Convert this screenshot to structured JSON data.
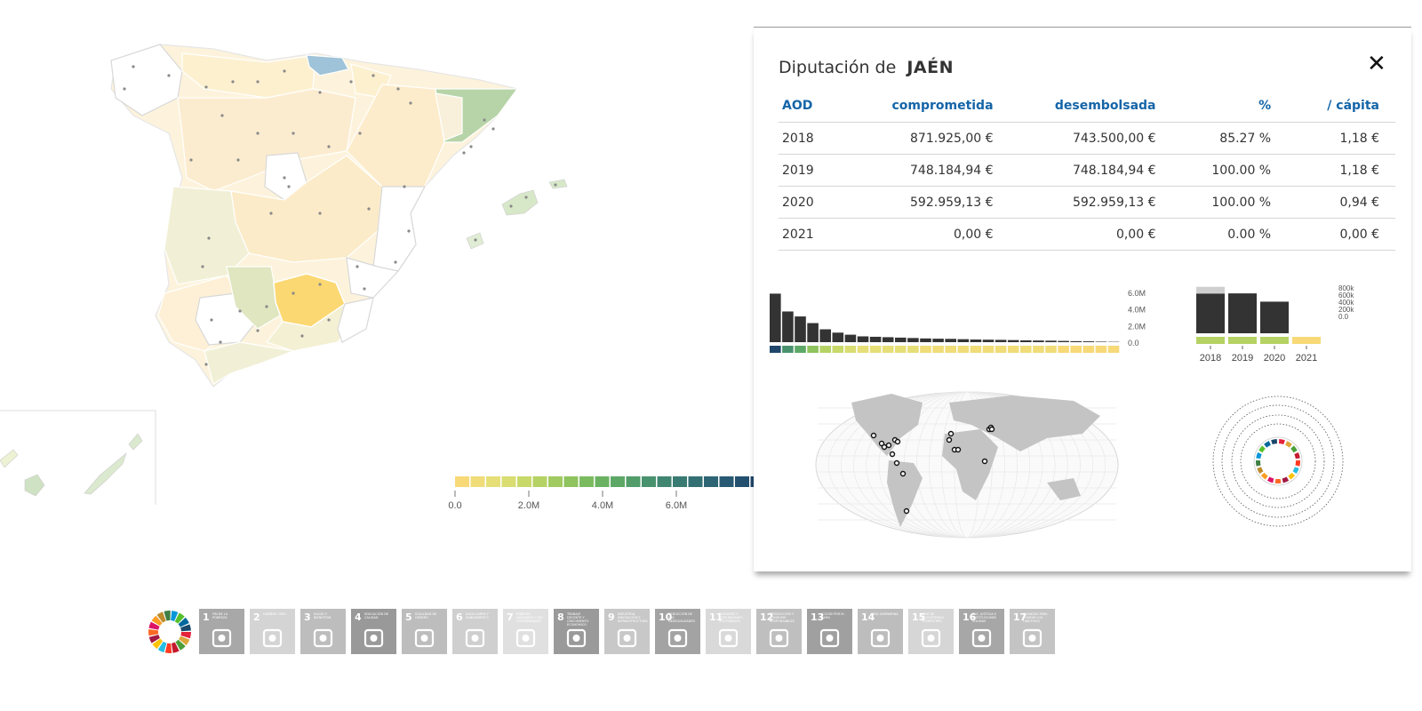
{
  "panel": {
    "title_prefix": "Diputación de",
    "title_name": "JAÉN",
    "close_label": "✕",
    "table": {
      "headers": [
        "AOD",
        "comprometida",
        "desembolsada",
        "%",
        "/ cápita"
      ],
      "rows": [
        [
          "2018",
          "871.925,00 €",
          "743.500,00 €",
          "85.27 %",
          "1,18 €"
        ],
        [
          "2019",
          "748.184,94 €",
          "748.184,94 €",
          "100.00 %",
          "1,18 €"
        ],
        [
          "2020",
          "592.959,13 €",
          "592.959,13 €",
          "100.00 %",
          "0,94 €"
        ],
        [
          "2021",
          "0,00 €",
          "0,00 €",
          "0.00 %",
          "0,00 €"
        ]
      ]
    },
    "ranking_chart": {
      "type": "bar",
      "ticks": [
        "6.0M",
        "4.0M",
        "2.0M",
        "0.0"
      ],
      "values": [
        5.85,
        3.7,
        3.1,
        2.3,
        1.55,
        1.15,
        0.9,
        0.7,
        0.65,
        0.6,
        0.55,
        0.5,
        0.45,
        0.42,
        0.4,
        0.36,
        0.32,
        0.3,
        0.28,
        0.25,
        0.22,
        0.2,
        0.18,
        0.15,
        0.12,
        0.1,
        0.06,
        0.04
      ],
      "value_unit": "M"
    },
    "year_chart": {
      "type": "bar",
      "ticks": [
        "800k",
        "600k",
        "400k",
        "200k",
        "0.0"
      ],
      "categories": [
        "2018",
        "2019",
        "2020",
        "2021"
      ],
      "committed": [
        871925.0,
        748184.94,
        592959.13,
        0
      ],
      "disbursed": [
        743500.0,
        748184.94,
        592959.13,
        0
      ]
    }
  },
  "legend": {
    "ticks": [
      "0.0",
      "2.0M",
      "4.0M",
      "6.0M"
    ],
    "colors": [
      "#f7d978",
      "#f0dc78",
      "#e6df78",
      "#d9dd72",
      "#c8d96a",
      "#b5d264",
      "#a1ca60",
      "#8ec35e",
      "#7bbb60",
      "#6ab262",
      "#5da866",
      "#529d6a",
      "#49926e",
      "#408670",
      "#397b72",
      "#337073",
      "#2d6574",
      "#285a74",
      "#23506f",
      "#1f466a"
    ]
  },
  "sdg": {
    "wheel_colors": [
      "#e5243b",
      "#dda63a",
      "#4c9f38",
      "#c5192d",
      "#ff3a21",
      "#26bde2",
      "#fcc30b",
      "#a21942",
      "#fd6925",
      "#dd1367",
      "#fd9d24",
      "#bf8b2e",
      "#3f7e44",
      "#0a97d9",
      "#56c02b",
      "#00689d",
      "#19486a"
    ],
    "goals": [
      {
        "num": "1",
        "text": "Fin de la pobreza",
        "icon": "family-icon",
        "shade": "#a8a8a8"
      },
      {
        "num": "2",
        "text": "Hambre cero",
        "icon": "bowl-icon",
        "shade": "#d4d4d4"
      },
      {
        "num": "3",
        "text": "Salud y bienestar",
        "icon": "heartbeat-icon",
        "shade": "#bdbdbd"
      },
      {
        "num": "4",
        "text": "Educación de calidad",
        "icon": "book-icon",
        "shade": "#999999"
      },
      {
        "num": "5",
        "text": "Igualdad de género",
        "icon": "gender-icon",
        "shade": "#bdbdbd"
      },
      {
        "num": "6",
        "text": "Agua limpia y saneamiento",
        "icon": "water-icon",
        "shade": "#cfcfcf"
      },
      {
        "num": "7",
        "text": "Energía asequible y no contaminante",
        "icon": "sun-icon",
        "shade": "#e0e0e0"
      },
      {
        "num": "8",
        "text": "Trabajo decente y crecimiento económico",
        "icon": "growth-icon",
        "shade": "#9a9a9a"
      },
      {
        "num": "9",
        "text": "Industria, innovación e infraestructura",
        "icon": "cubes-icon",
        "shade": "#c8c8c8"
      },
      {
        "num": "10",
        "text": "Reducción de las desigualdades",
        "icon": "equality-icon",
        "shade": "#a3a3a3"
      },
      {
        "num": "11",
        "text": "Ciudades y comunidades sostenibles",
        "icon": "city-icon",
        "shade": "#d9d9d9"
      },
      {
        "num": "12",
        "text": "Producción y consumo responsables",
        "icon": "infinity-icon",
        "shade": "#bfbfbf"
      },
      {
        "num": "13",
        "text": "Acción por el clima",
        "icon": "eye-icon",
        "shade": "#a0a0a0"
      },
      {
        "num": "14",
        "text": "Vida submarina",
        "icon": "fish-icon",
        "shade": "#bdbdbd"
      },
      {
        "num": "15",
        "text": "Vida de ecosistemas terrestres",
        "icon": "tree-icon",
        "shade": "#d6d6d6"
      },
      {
        "num": "16",
        "text": "Paz, justicia e instituciones sólidas",
        "icon": "dove-icon",
        "shade": "#a7a7a7"
      },
      {
        "num": "17",
        "text": "Alianzas para lograr los objetivos",
        "icon": "flower-icon",
        "shade": "#c4c4c4"
      }
    ]
  }
}
